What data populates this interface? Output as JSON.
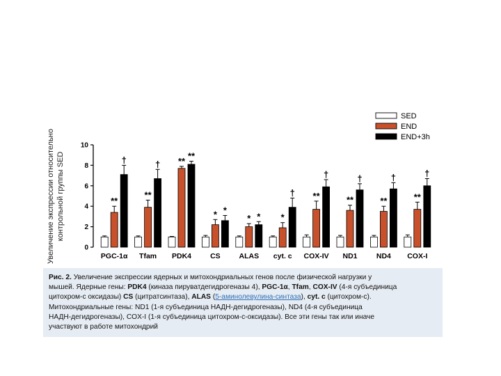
{
  "chart_data": {
    "type": "bar",
    "ylabel_lines": [
      "Увеличение экспрессии относительно",
      "контрольной группы SED"
    ],
    "ylim": [
      0,
      10
    ],
    "yticks": [
      0,
      2,
      4,
      6,
      8,
      10
    ],
    "legend_position": "top-right",
    "categories": [
      "PGC-1α",
      "Tfam",
      "PDK4",
      "CS",
      "ALAS",
      "cyt. c",
      "COX-IV",
      "ND1",
      "ND4",
      "COX-I"
    ],
    "series": [
      {
        "name": "SED",
        "color": "#ffffff",
        "values": [
          1.0,
          1.0,
          1.0,
          1.0,
          1.0,
          1.0,
          1.0,
          1.0,
          1.0,
          1.0
        ],
        "errors": [
          0.1,
          0.1,
          0.05,
          0.15,
          0.1,
          0.1,
          0.2,
          0.15,
          0.15,
          0.2
        ],
        "annotations": [
          "",
          "",
          "",
          "",
          "",
          "",
          "",
          "",
          "",
          ""
        ]
      },
      {
        "name": "END",
        "color": "#c8502a",
        "values": [
          3.4,
          3.9,
          7.7,
          2.2,
          2.0,
          1.9,
          3.7,
          3.6,
          3.5,
          3.7
        ],
        "errors": [
          0.6,
          0.7,
          0.2,
          0.5,
          0.3,
          0.5,
          0.8,
          0.5,
          0.5,
          0.7
        ],
        "annotations": [
          "**",
          "**",
          "**",
          "*",
          "*",
          "*",
          "**",
          "**",
          "**",
          "**"
        ]
      },
      {
        "name": "END+3h",
        "color": "#000000",
        "values": [
          7.1,
          6.7,
          8.1,
          2.6,
          2.2,
          3.9,
          5.9,
          5.6,
          5.7,
          6.0
        ],
        "errors": [
          0.9,
          0.9,
          0.3,
          0.5,
          0.3,
          0.9,
          0.7,
          0.6,
          0.6,
          0.7
        ],
        "annotations": [
          "†",
          "†",
          "**",
          "*",
          "*",
          "†",
          "†",
          "†",
          "†",
          "†"
        ]
      }
    ]
  },
  "caption": {
    "line1": [
      {
        "t": "Рис. 2.",
        "b": true
      },
      {
        "t": " Увеличение экспрессии ядерных и митохондриальных генов после физической нагрузки у",
        "b": false
      }
    ],
    "line2": [
      {
        "t": "мышей. Ядерные гены: ",
        "b": false
      },
      {
        "t": "PDK4",
        "b": true
      },
      {
        "t": " (киназа пируватдегидрогеназы 4), ",
        "b": false
      },
      {
        "t": "PGC-1α",
        "b": true
      },
      {
        "t": ", ",
        "b": false
      },
      {
        "t": "Tfam",
        "b": true
      },
      {
        "t": ", ",
        "b": false
      },
      {
        "t": "COX-IV",
        "b": true
      },
      {
        "t": " (4-я субъединица",
        "b": false
      }
    ],
    "line3": [
      {
        "t": "цитохром-с оксидазы) ",
        "b": false
      },
      {
        "t": "CS",
        "b": true
      },
      {
        "t": " (цитратсинтаза), ",
        "b": false
      },
      {
        "t": "ALAS",
        "b": true
      },
      {
        "t": " (",
        "b": false
      },
      {
        "t": "5-аминолевулина-синтаза",
        "b": false,
        "link": true
      },
      {
        "t": "), ",
        "b": false
      },
      {
        "t": "cyt. c",
        "b": true
      },
      {
        "t": " (цитохром-с).",
        "b": false
      }
    ],
    "line4": [
      {
        "t": "Митохондриальные гены: ND1 (1-я субъединица НАДН-дегидрогеназы), ND4 (4-я субъединица",
        "b": false
      }
    ],
    "line5": [
      {
        "t": "НАДН-дегидрогеназы), COX-I (1-я субъединица цитохром-с-оксидазы). Все эти гены так или иначе",
        "b": false
      }
    ],
    "line6": [
      {
        "t": "участвуют в работе митохондрий",
        "b": false
      }
    ]
  }
}
